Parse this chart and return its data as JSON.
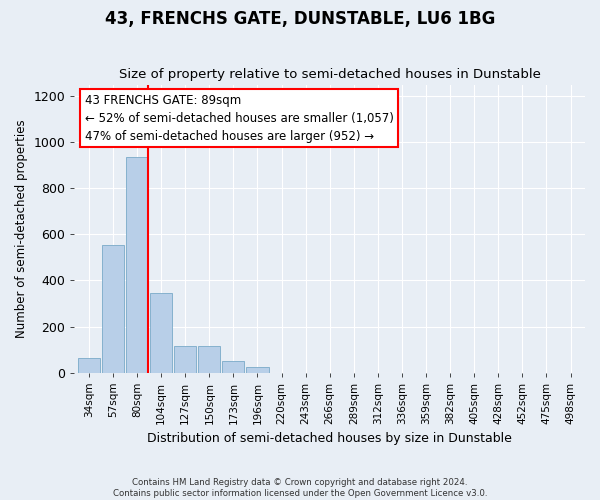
{
  "title": "43, FRENCHS GATE, DUNSTABLE, LU6 1BG",
  "subtitle": "Size of property relative to semi-detached houses in Dunstable",
  "xlabel": "Distribution of semi-detached houses by size in Dunstable",
  "ylabel": "Number of semi-detached properties",
  "bin_labels": [
    "34sqm",
    "57sqm",
    "80sqm",
    "104sqm",
    "127sqm",
    "150sqm",
    "173sqm",
    "196sqm",
    "220sqm",
    "243sqm",
    "266sqm",
    "289sqm",
    "312sqm",
    "336sqm",
    "359sqm",
    "382sqm",
    "405sqm",
    "428sqm",
    "452sqm",
    "475sqm",
    "498sqm"
  ],
  "bar_values": [
    65,
    555,
    935,
    345,
    115,
    115,
    50,
    25,
    0,
    0,
    0,
    0,
    0,
    0,
    0,
    0,
    0,
    0,
    0,
    0,
    0
  ],
  "bar_color": "#b8cfe8",
  "bar_edge_color": "#7aaac8",
  "vline_color": "red",
  "vline_x_index": 2,
  "annotation_text": "43 FRENCHS GATE: 89sqm\n← 52% of semi-detached houses are smaller (1,057)\n47% of semi-detached houses are larger (952) →",
  "annotation_box_color": "white",
  "annotation_box_edge": "red",
  "ylim": [
    0,
    1250
  ],
  "yticks": [
    0,
    200,
    400,
    600,
    800,
    1000,
    1200
  ],
  "footer_line1": "Contains HM Land Registry data © Crown copyright and database right 2024.",
  "footer_line2": "Contains public sector information licensed under the Open Government Licence v3.0.",
  "bg_color": "#e8eef5",
  "plot_bg_color": "#e8eef5"
}
